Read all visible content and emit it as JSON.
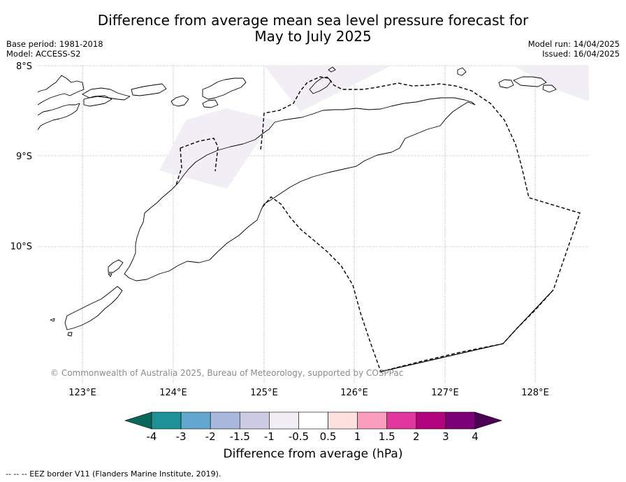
{
  "header": {
    "title_line1": "Difference from average mean sea level pressure forecast for",
    "title_line2": "May to July 2025",
    "base_period": "Base period: 1981-2018",
    "model": "Model: ACCESS-S2",
    "model_run": "Model run: 14/04/2025",
    "issued": "Issued: 16/04/2025"
  },
  "map": {
    "lat_labels": [
      "8°S",
      "9°S",
      "10°S"
    ],
    "lon_labels": [
      "123°E",
      "124°E",
      "125°E",
      "126°E",
      "127°E",
      "128°E"
    ],
    "copyright": "© Commonwealth of Australia 2025, Bureau of Meteorology, supported by COSPPac",
    "shading_color": "#f2eef5"
  },
  "colorbar": {
    "title": "Difference from average (hPa)",
    "tick_labels": [
      "-4",
      "-3",
      "-2",
      "-1.5",
      "-1",
      "-0.5",
      "0.5",
      "1",
      "1.5",
      "2",
      "3",
      "4"
    ],
    "colors": [
      "#07675a",
      "#1d9196",
      "#62a7cf",
      "#a7b8dc",
      "#cdcce4",
      "#f2eef5",
      "#ffffff",
      "#fee0de",
      "#f89ebc",
      "#e0389d",
      "#b1047f",
      "#7a0177",
      "#4d0156"
    ]
  },
  "footnote": "--  --  -- EEZ border V11 (Flanders Marine Institute, 2019)."
}
